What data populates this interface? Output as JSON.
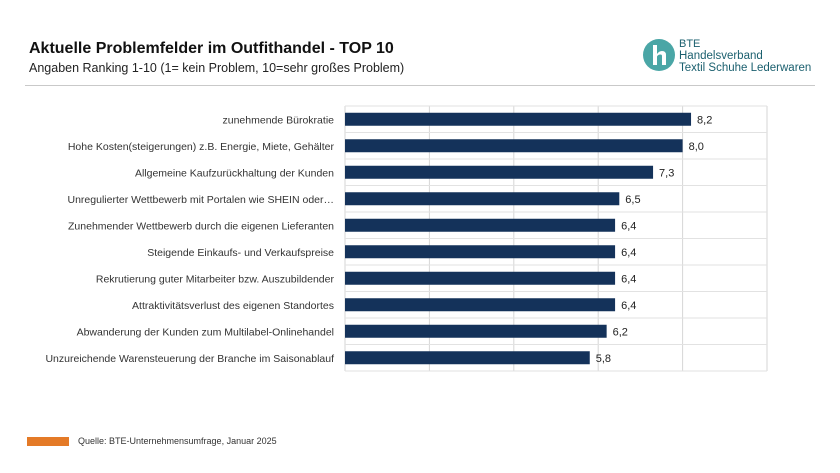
{
  "header": {
    "title": "Aktuelle Problemfelder im Outfithandel - TOP 10",
    "subtitle": "Angaben Ranking 1-10 (1= kein Problem, 10=sehr großes Problem)"
  },
  "logo": {
    "line1": "BTE",
    "line2": "Handelsverband",
    "line3": "Textil  Schuhe  Lederwaren",
    "color": "#1a5f6e"
  },
  "footer": {
    "source": "Quelle: BTE-Unternehmensumfrage, Januar 2025",
    "swatch_color": "#e47a27"
  },
  "chart_data": {
    "type": "bar",
    "orientation": "horizontal",
    "bar_color": "#14325a",
    "xlim": [
      0,
      10
    ],
    "grid": true,
    "categories": [
      "zunehmende Bürokratie",
      "Hohe Kosten(steigerungen) z.B. Energie, Miete, Gehälter",
      "Allgemeine Kaufzurückhaltung der Kunden",
      "Unregulierter Wettbewerb mit Portalen wie SHEIN oder…",
      "Zunehmender Wettbewerb durch die eigenen Lieferanten",
      "Steigende Einkaufs- und Verkaufspreise",
      "Rekrutierung guter Mitarbeiter bzw. Auszubildender",
      "Attraktivitätsverlust des eigenen Standortes",
      "Abwanderung der Kunden zum Multilabel-Onlinehandel",
      "Unzureichende Warensteuerung der Branche im Saisonablauf"
    ],
    "values": [
      8.2,
      8.0,
      7.3,
      6.5,
      6.4,
      6.4,
      6.4,
      6.4,
      6.2,
      5.8
    ],
    "value_labels": [
      "8,2",
      "8,0",
      "7,3",
      "6,5",
      "6,4",
      "6,4",
      "6,4",
      "6,4",
      "6,2",
      "5,8"
    ]
  }
}
